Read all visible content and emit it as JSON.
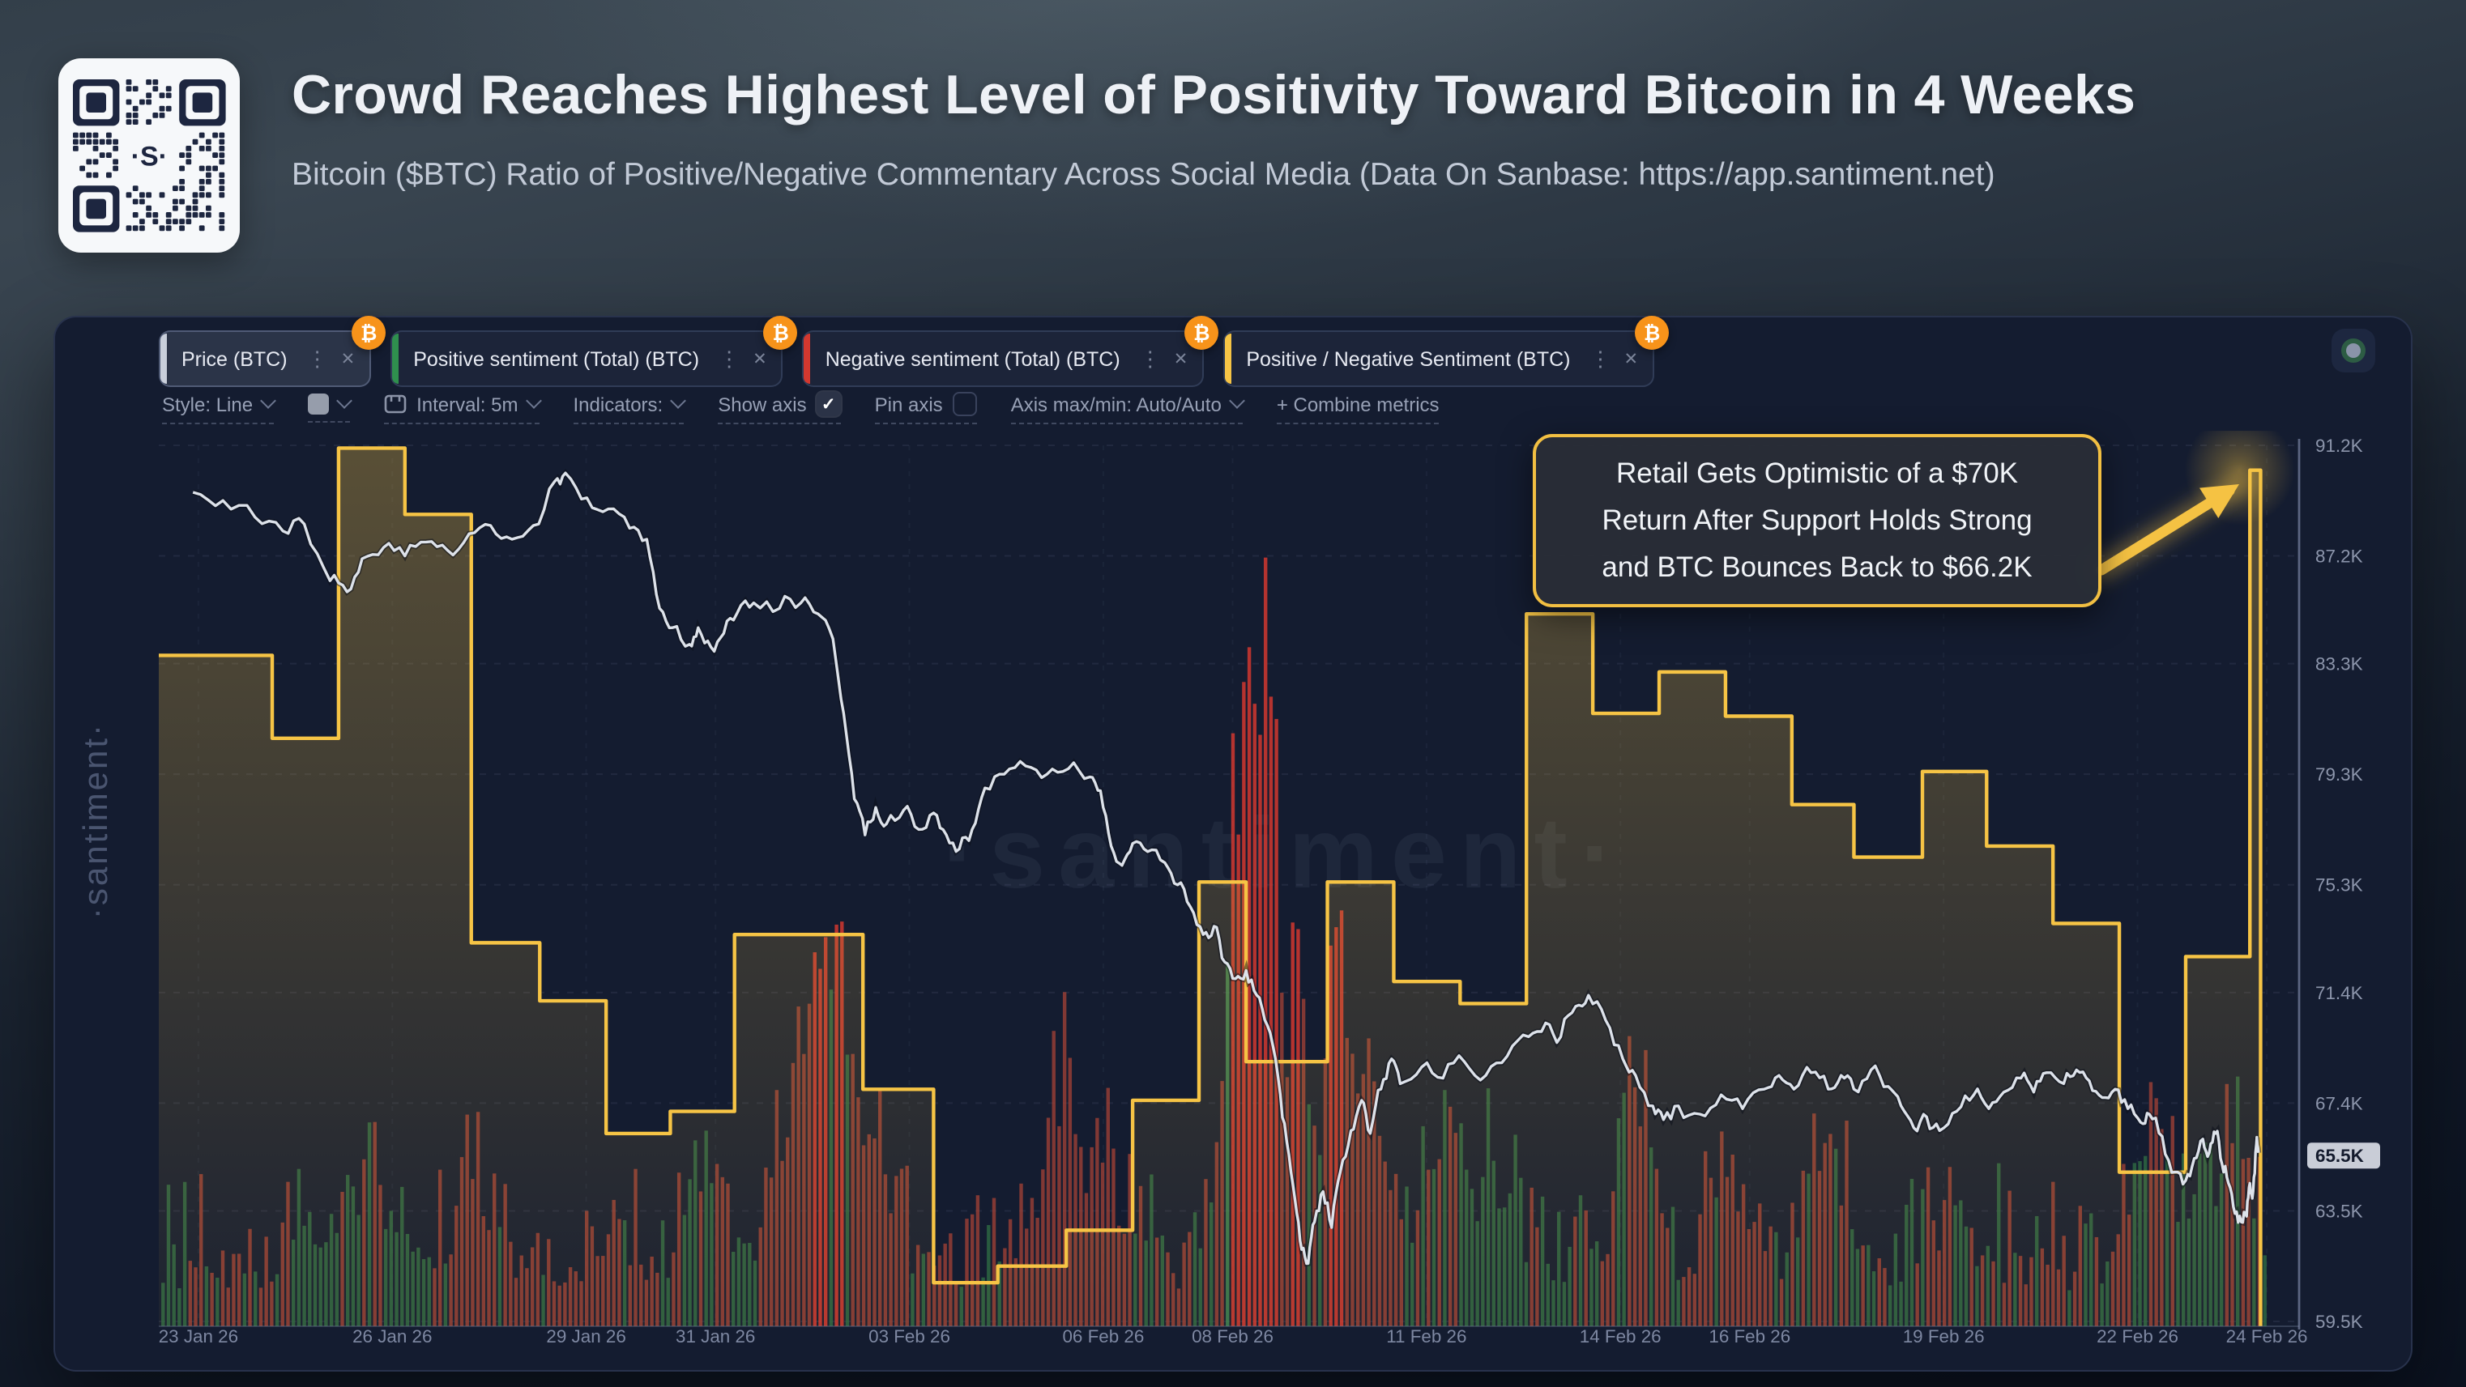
{
  "header": {
    "title": "Crowd Reaches Highest Level of Positivity Toward Bitcoin in 4 Weeks",
    "subtitle": "Bitcoin ($BTC) Ratio of Positive/Negative Commentary Across Social Media (Data On Sanbase: https://app.santiment.net)"
  },
  "icons": {
    "check": "✓",
    "kebab": "⋮",
    "close": "✕",
    "bitcoin": "₿"
  },
  "card": {
    "tabs": [
      {
        "label": "Price (BTC)",
        "accent": "#c9cfdb",
        "selected": true
      },
      {
        "label": "Positive sentiment (Total) (BTC)",
        "accent": "#2f8f4e",
        "selected": false
      },
      {
        "label": "Negative sentiment (Total) (BTC)",
        "accent": "#d3382f",
        "selected": false
      },
      {
        "label": "Positive / Negative Sentiment (BTC)",
        "accent": "#f6c445",
        "selected": false
      }
    ],
    "toolbar": {
      "style": "Style: Line",
      "interval": "Interval: 5m",
      "indicators": "Indicators:",
      "show_axis": "Show axis",
      "show_axis_checked": true,
      "pin_axis": "Pin axis",
      "pin_axis_checked": false,
      "axis_maxmin": "Axis max/min: Auto/Auto",
      "combine": "+ Combine metrics"
    },
    "watermark_center": "·santiment·",
    "watermark_side": "·santiment·"
  },
  "annotation": {
    "line1": "Retail Gets Optimistic of a $70K",
    "line2": "Return After Support Holds Strong",
    "line3": "and BTC Bounces Back to $66.2K",
    "border_color": "#f2bf42"
  },
  "chart_data": {
    "type": "composite",
    "title": "",
    "grid": true,
    "legend_position": "tabs-top",
    "x_axis": {
      "labels": [
        "23 Jan 26",
        "26 Jan 26",
        "29 Jan 26",
        "31 Jan 26",
        "03 Feb 26",
        "06 Feb 26",
        "08 Feb 26",
        "11 Feb 26",
        "14 Feb 26",
        "16 Feb 26",
        "19 Feb 26",
        "22 Feb 26",
        "24 Feb 26"
      ],
      "fractions": [
        0.0185,
        0.1091,
        0.1997,
        0.2601,
        0.3507,
        0.4413,
        0.5017,
        0.5923,
        0.6829,
        0.7433,
        0.8339,
        0.9245,
        0.9849
      ]
    },
    "y_axis": {
      "min": 59.5,
      "max": 91.2,
      "unit": "K USD",
      "ticks": [
        {
          "label": "91.2K",
          "value": 91.2
        },
        {
          "label": "87.2K",
          "value": 87.2
        },
        {
          "label": "83.3K",
          "value": 83.3
        },
        {
          "label": "79.3K",
          "value": 79.3
        },
        {
          "label": "75.3K",
          "value": 75.3
        },
        {
          "label": "71.4K",
          "value": 71.4
        },
        {
          "label": "67.4K",
          "value": 67.4
        },
        {
          "label": "63.5K",
          "value": 63.5
        },
        {
          "label": "59.5K",
          "value": 59.5
        }
      ],
      "price_badge": {
        "label": "65.5K",
        "value": 65.5
      }
    },
    "series": [
      {
        "name": "Price (BTC)",
        "type": "line",
        "color": "#dde2ea",
        "points": [
          [
            0.016,
            89.5
          ],
          [
            0.03,
            89.2
          ],
          [
            0.045,
            88.6
          ],
          [
            0.058,
            88.1
          ],
          [
            0.068,
            88.35
          ],
          [
            0.08,
            86.3
          ],
          [
            0.088,
            85.9
          ],
          [
            0.095,
            87.1
          ],
          [
            0.105,
            87.5
          ],
          [
            0.115,
            87.2
          ],
          [
            0.125,
            87.7
          ],
          [
            0.135,
            87.4
          ],
          [
            0.145,
            88.0
          ],
          [
            0.155,
            88.3
          ],
          [
            0.165,
            87.8
          ],
          [
            0.175,
            88.3
          ],
          [
            0.185,
            89.9
          ],
          [
            0.19,
            90.2
          ],
          [
            0.2,
            89.3
          ],
          [
            0.21,
            88.9
          ],
          [
            0.22,
            88.2
          ],
          [
            0.228,
            87.8
          ],
          [
            0.234,
            85.3
          ],
          [
            0.24,
            84.6
          ],
          [
            0.248,
            84.0
          ],
          [
            0.252,
            84.6
          ],
          [
            0.258,
            83.9
          ],
          [
            0.264,
            84.4
          ],
          [
            0.27,
            85.1
          ],
          [
            0.278,
            85.5
          ],
          [
            0.29,
            85.3
          ],
          [
            0.3,
            85.5
          ],
          [
            0.308,
            85.1
          ],
          [
            0.315,
            84.2
          ],
          [
            0.32,
            81.5
          ],
          [
            0.325,
            78.4
          ],
          [
            0.33,
            77.1
          ],
          [
            0.335,
            78.1
          ],
          [
            0.34,
            77.5
          ],
          [
            0.348,
            78.0
          ],
          [
            0.355,
            77.3
          ],
          [
            0.362,
            77.9
          ],
          [
            0.368,
            77.1
          ],
          [
            0.374,
            76.6
          ],
          [
            0.38,
            77.3
          ],
          [
            0.386,
            78.8
          ],
          [
            0.395,
            79.3
          ],
          [
            0.405,
            79.6
          ],
          [
            0.415,
            79.3
          ],
          [
            0.425,
            79.5
          ],
          [
            0.435,
            79.2
          ],
          [
            0.44,
            78.7
          ],
          [
            0.445,
            76.7
          ],
          [
            0.45,
            76.0
          ],
          [
            0.455,
            76.8
          ],
          [
            0.462,
            76.5
          ],
          [
            0.47,
            76.1
          ],
          [
            0.476,
            75.3
          ],
          [
            0.482,
            74.5
          ],
          [
            0.488,
            73.5
          ],
          [
            0.493,
            73.8
          ],
          [
            0.498,
            72.5
          ],
          [
            0.503,
            71.9
          ],
          [
            0.508,
            72.2
          ],
          [
            0.513,
            71.3
          ],
          [
            0.518,
            70.2
          ],
          [
            0.523,
            68.3
          ],
          [
            0.527,
            66.0
          ],
          [
            0.531,
            63.8
          ],
          [
            0.534,
            62.1
          ],
          [
            0.537,
            61.6
          ],
          [
            0.54,
            63.1
          ],
          [
            0.544,
            64.2
          ],
          [
            0.548,
            62.9
          ],
          [
            0.552,
            64.9
          ],
          [
            0.557,
            66.4
          ],
          [
            0.562,
            67.5
          ],
          [
            0.566,
            66.3
          ],
          [
            0.571,
            67.9
          ],
          [
            0.576,
            69.0
          ],
          [
            0.58,
            68.1
          ],
          [
            0.59,
            68.7
          ],
          [
            0.6,
            68.3
          ],
          [
            0.61,
            68.9
          ],
          [
            0.62,
            68.4
          ],
          [
            0.63,
            69.1
          ],
          [
            0.64,
            69.8
          ],
          [
            0.648,
            70.3
          ],
          [
            0.655,
            69.8
          ],
          [
            0.662,
            70.9
          ],
          [
            0.668,
            71.3
          ],
          [
            0.676,
            70.4
          ],
          [
            0.684,
            69.0
          ],
          [
            0.69,
            68.4
          ],
          [
            0.698,
            67.3
          ],
          [
            0.703,
            66.8
          ],
          [
            0.71,
            67.3
          ],
          [
            0.72,
            67.0
          ],
          [
            0.73,
            67.7
          ],
          [
            0.74,
            67.2
          ],
          [
            0.75,
            67.9
          ],
          [
            0.757,
            68.4
          ],
          [
            0.764,
            67.9
          ],
          [
            0.772,
            68.5
          ],
          [
            0.78,
            67.9
          ],
          [
            0.786,
            68.4
          ],
          [
            0.792,
            67.9
          ],
          [
            0.8,
            68.6
          ],
          [
            0.808,
            68.0
          ],
          [
            0.814,
            67.3
          ],
          [
            0.82,
            66.5
          ],
          [
            0.826,
            66.9
          ],
          [
            0.832,
            66.4
          ],
          [
            0.84,
            67.1
          ],
          [
            0.848,
            67.7
          ],
          [
            0.855,
            67.2
          ],
          [
            0.862,
            67.8
          ],
          [
            0.87,
            68.3
          ],
          [
            0.876,
            67.8
          ],
          [
            0.882,
            68.5
          ],
          [
            0.89,
            68.1
          ],
          [
            0.896,
            68.6
          ],
          [
            0.902,
            68.2
          ],
          [
            0.908,
            67.6
          ],
          [
            0.914,
            67.9
          ],
          [
            0.92,
            67.2
          ],
          [
            0.926,
            66.7
          ],
          [
            0.93,
            67.0
          ],
          [
            0.936,
            66.2
          ],
          [
            0.942,
            64.9
          ],
          [
            0.947,
            64.6
          ],
          [
            0.951,
            65.4
          ],
          [
            0.955,
            66.1
          ],
          [
            0.958,
            65.6
          ],
          [
            0.961,
            66.3
          ],
          [
            0.964,
            65.2
          ],
          [
            0.967,
            64.5
          ],
          [
            0.97,
            63.4
          ],
          [
            0.973,
            63.1
          ],
          [
            0.9755,
            63.3
          ],
          [
            0.977,
            64.5
          ],
          [
            0.9785,
            64.2
          ],
          [
            0.98,
            65.9
          ],
          [
            0.981,
            65.6
          ]
        ]
      },
      {
        "name": "Positive / Negative Sentiment (BTC)",
        "type": "step_area",
        "color": "#f6c445",
        "end_fraction": 0.982,
        "steps": [
          [
            0.0,
            83.6
          ],
          [
            0.053,
            80.6
          ],
          [
            0.084,
            91.1
          ],
          [
            0.115,
            88.7
          ],
          [
            0.146,
            73.2
          ],
          [
            0.178,
            71.1
          ],
          [
            0.209,
            66.3
          ],
          [
            0.239,
            67.1
          ],
          [
            0.269,
            73.5
          ],
          [
            0.329,
            67.9
          ],
          [
            0.362,
            60.9
          ],
          [
            0.392,
            61.5
          ],
          [
            0.424,
            62.8
          ],
          [
            0.455,
            67.5
          ],
          [
            0.486,
            75.4
          ],
          [
            0.508,
            68.9
          ],
          [
            0.546,
            75.4
          ],
          [
            0.577,
            71.8
          ],
          [
            0.608,
            71.0
          ],
          [
            0.639,
            85.1
          ],
          [
            0.67,
            81.5
          ],
          [
            0.701,
            83.0
          ],
          [
            0.732,
            81.4
          ],
          [
            0.763,
            78.2
          ],
          [
            0.792,
            76.3
          ],
          [
            0.824,
            79.4
          ],
          [
            0.854,
            76.7
          ],
          [
            0.885,
            73.9
          ],
          [
            0.916,
            64.9
          ],
          [
            0.947,
            72.7
          ],
          [
            0.977,
            90.3
          ]
        ]
      },
      {
        "name": "Positive sentiment (Total) (BTC)",
        "type": "bars",
        "color": "#2f8f4e"
      },
      {
        "name": "Negative sentiment (Total) (BTC)",
        "type": "bars",
        "color": "#d3382f"
      }
    ],
    "bars_render": {
      "count": 388,
      "seed": 98765,
      "baseline": 59.5,
      "base_max": 65.3,
      "red_probability": 0.56,
      "clusters": [
        [
          0.1,
          0.015,
          3.5,
          "g"
        ],
        [
          0.148,
          0.01,
          4,
          "r"
        ],
        [
          0.255,
          0.012,
          4,
          "m"
        ],
        [
          0.3,
          0.012,
          9,
          "r"
        ],
        [
          0.316,
          0.008,
          13,
          "r"
        ],
        [
          0.335,
          0.01,
          6,
          "r"
        ],
        [
          0.42,
          0.01,
          9,
          "r"
        ],
        [
          0.44,
          0.008,
          5,
          "r"
        ],
        [
          0.503,
          0.006,
          15,
          "r"
        ],
        [
          0.513,
          0.007,
          27,
          "r"
        ],
        [
          0.521,
          0.005,
          21,
          "r"
        ],
        [
          0.532,
          0.006,
          13,
          "r"
        ],
        [
          0.55,
          0.008,
          11,
          "r"
        ],
        [
          0.565,
          0.01,
          8,
          "r"
        ],
        [
          0.6,
          0.012,
          6,
          "m"
        ],
        [
          0.625,
          0.008,
          5,
          "g"
        ],
        [
          0.69,
          0.01,
          7,
          "r"
        ],
        [
          0.73,
          0.008,
          4,
          "m"
        ],
        [
          0.78,
          0.01,
          5,
          "m"
        ],
        [
          0.84,
          0.008,
          4,
          "m"
        ],
        [
          0.93,
          0.012,
          6,
          "m"
        ],
        [
          0.955,
          0.008,
          5,
          "g"
        ],
        [
          0.972,
          0.008,
          6,
          "m"
        ]
      ]
    },
    "colors": {
      "price_line": "#dde2ea",
      "ratio_line": "#f6c445",
      "positive_bars": "#2f8f4e",
      "negative_bars": "#d3382f",
      "badge_orange": "#f7931a",
      "grid": "rgba(120,135,170,0.13)"
    }
  }
}
